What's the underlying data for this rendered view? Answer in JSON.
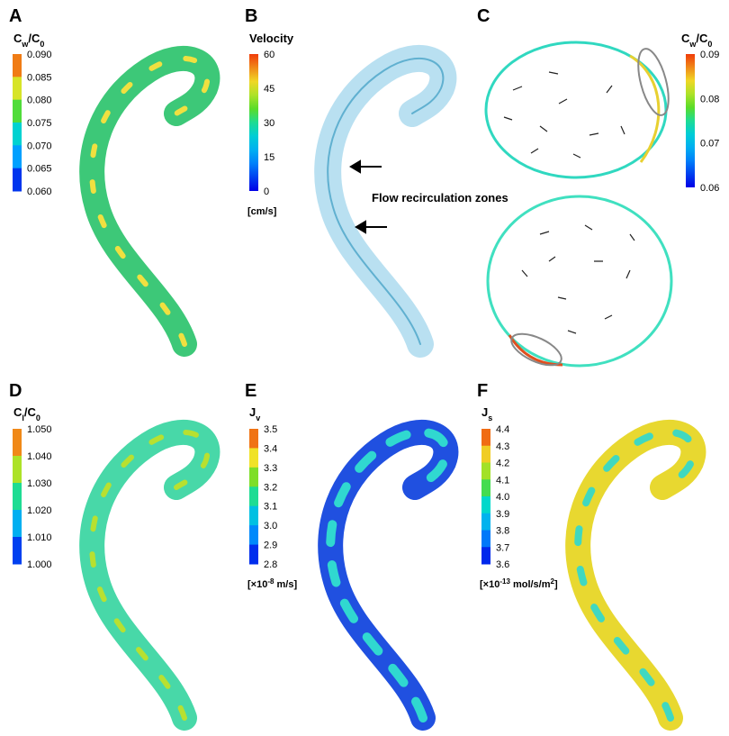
{
  "panels": [
    {
      "letter": "A",
      "title": [
        "C",
        "w",
        "/C",
        "0"
      ],
      "ticks": [
        "0.090",
        "0.085",
        "0.080",
        "0.075",
        "0.070",
        "0.065",
        "0.060"
      ],
      "scale": "discrete"
    },
    {
      "letter": "B",
      "title": [
        "Velocity"
      ],
      "ticks": [
        "60",
        "45",
        "30",
        "15",
        "0"
      ],
      "unit": [
        "[cm/s]"
      ],
      "scale": "continuous"
    },
    {
      "letter": "C",
      "title": [
        "C",
        "w",
        "/C",
        "0"
      ],
      "ticks": [
        "0.09",
        "0.08",
        "0.07",
        "0.06"
      ],
      "scale": "continuous"
    },
    {
      "letter": "D",
      "title": [
        "C",
        "l",
        "/C",
        "0"
      ],
      "ticks": [
        "1.050",
        "1.040",
        "1.030",
        "1.020",
        "1.010",
        "1.000"
      ],
      "scale": "discrete"
    },
    {
      "letter": "E",
      "title": [
        "J",
        "v"
      ],
      "ticks": [
        "3.5",
        "3.4",
        "3.3",
        "3.2",
        "3.1",
        "3.0",
        "2.9",
        "2.8"
      ],
      "unit": [
        "[×10",
        "-8",
        " m/s]"
      ],
      "scale": "discrete"
    },
    {
      "letter": "F",
      "title": [
        "J",
        "s"
      ],
      "ticks": [
        "4.4",
        "4.3",
        "4.2",
        "4.1",
        "4.0",
        "3.9",
        "3.8",
        "3.7",
        "3.6"
      ],
      "unit": [
        "[×10",
        "-13",
        " mol/s/m",
        "2",
        "]"
      ],
      "scale": "discrete"
    }
  ],
  "annotation": "Flow recirculation zones"
}
